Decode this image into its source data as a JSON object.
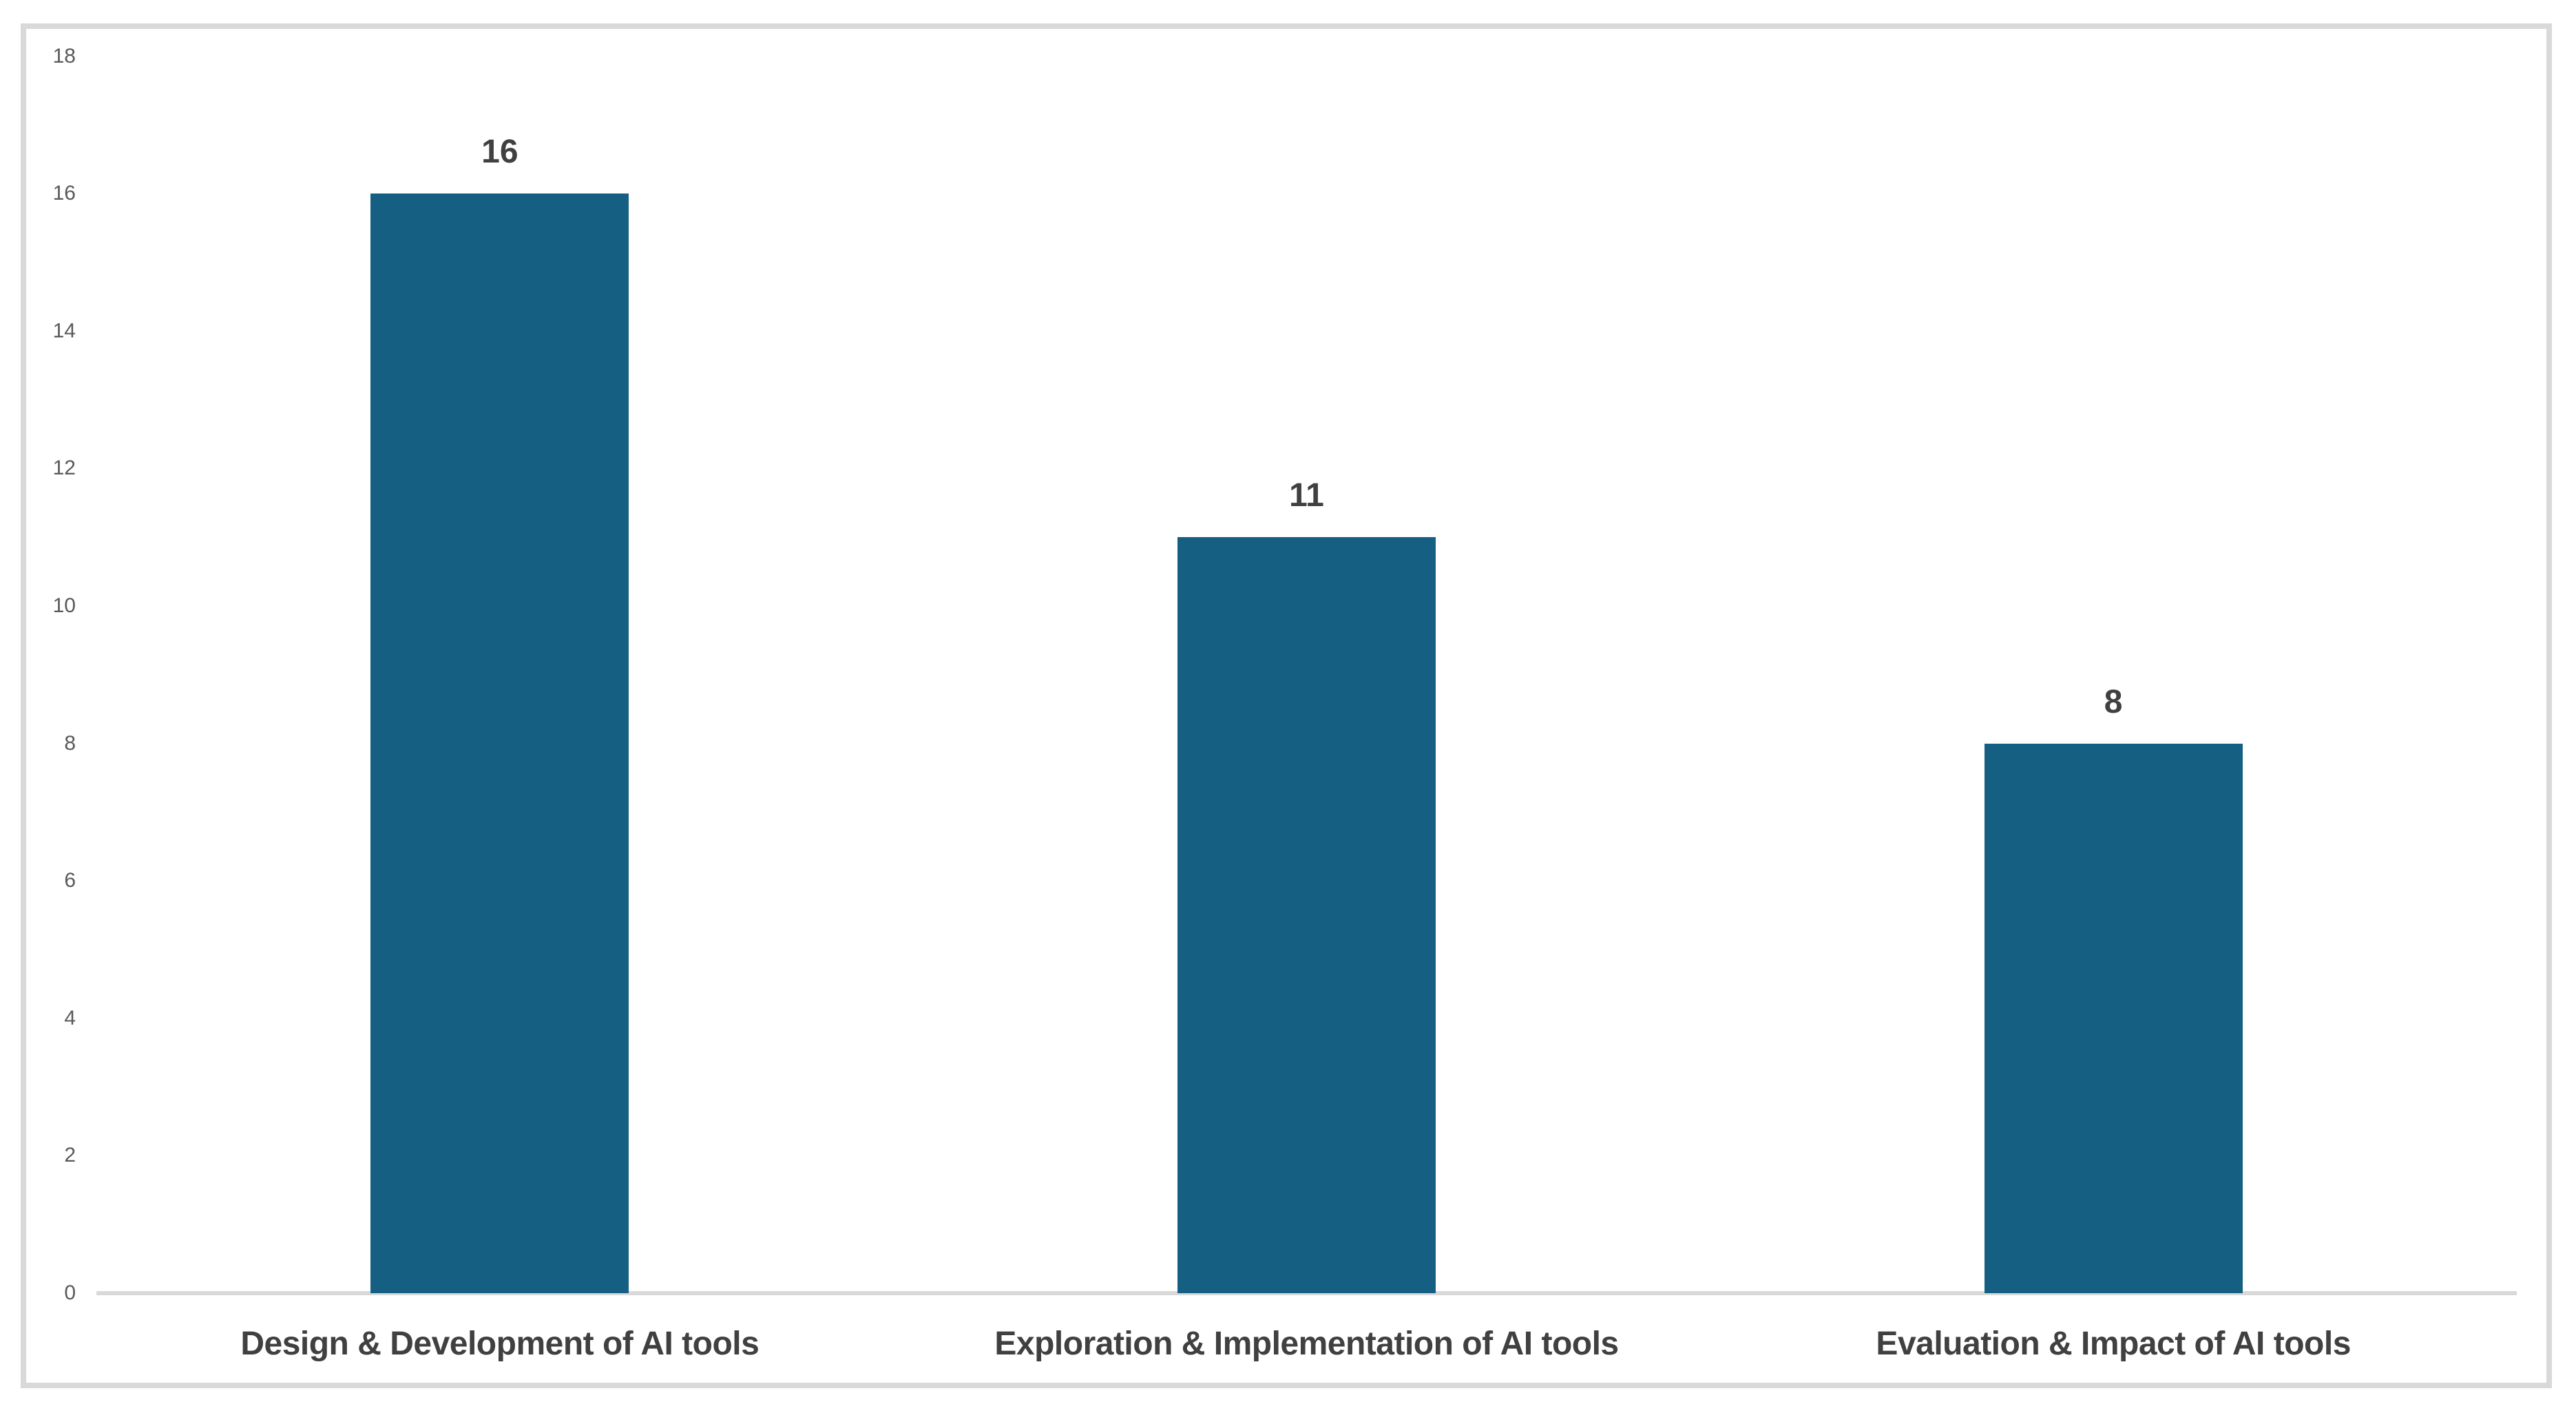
{
  "chart_data": {
    "type": "bar",
    "title": "",
    "xlabel": "",
    "ylabel": "",
    "categories": [
      "Design & Development of AI tools",
      "Exploration & Implementation of AI tools",
      "Evaluation & Impact of AI tools"
    ],
    "values": [
      16,
      11,
      8
    ],
    "data_labels": [
      "16",
      "11",
      "8"
    ],
    "yticks": [
      0,
      2,
      4,
      6,
      8,
      10,
      12,
      14,
      16,
      18
    ],
    "ylim": [
      0,
      18
    ],
    "grid": false,
    "legend": false,
    "colors": {
      "bar_fill": "#156082",
      "axis_line": "#d9d9d9",
      "frame_border": "#d9d9d9",
      "tick_label": "#595959",
      "data_label": "#404040",
      "category_label": "#404040",
      "background": "#ffffff"
    }
  }
}
